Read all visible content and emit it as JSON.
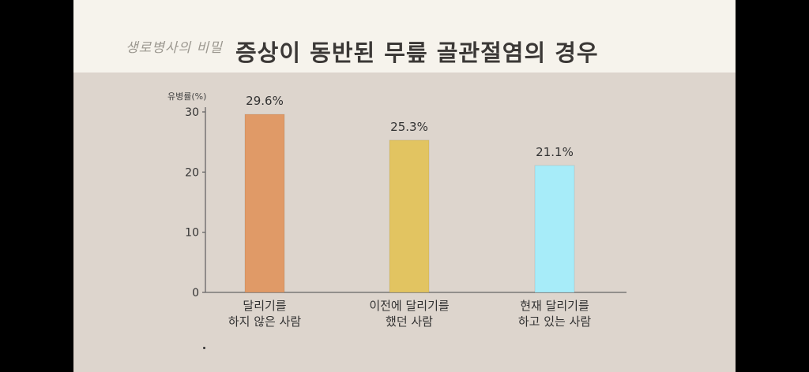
{
  "header": {
    "logo_text": "생로병사의 비밀",
    "title": "증상이 동반된 무릎 골관절염의 경우"
  },
  "chart_data": {
    "type": "bar",
    "title": "증상이 동반된 무릎 골관절염의 경우",
    "ylabel": "유병률(%)",
    "xlabel": "",
    "ylim": [
      0,
      30
    ],
    "yticks": [
      0,
      10,
      20,
      30
    ],
    "categories": [
      [
        "달리기를",
        "하지 않은 사람"
      ],
      [
        "이전에 달리기를",
        "했던 사람"
      ],
      [
        "현재 달리기를",
        "하고 있는 사람"
      ]
    ],
    "values": [
      29.6,
      25.3,
      21.1
    ],
    "value_labels": [
      "29.6%",
      "25.3%",
      "21.1%"
    ],
    "colors": [
      "#e09a67",
      "#e2c461",
      "#a7ecf9"
    ],
    "grid": false
  }
}
